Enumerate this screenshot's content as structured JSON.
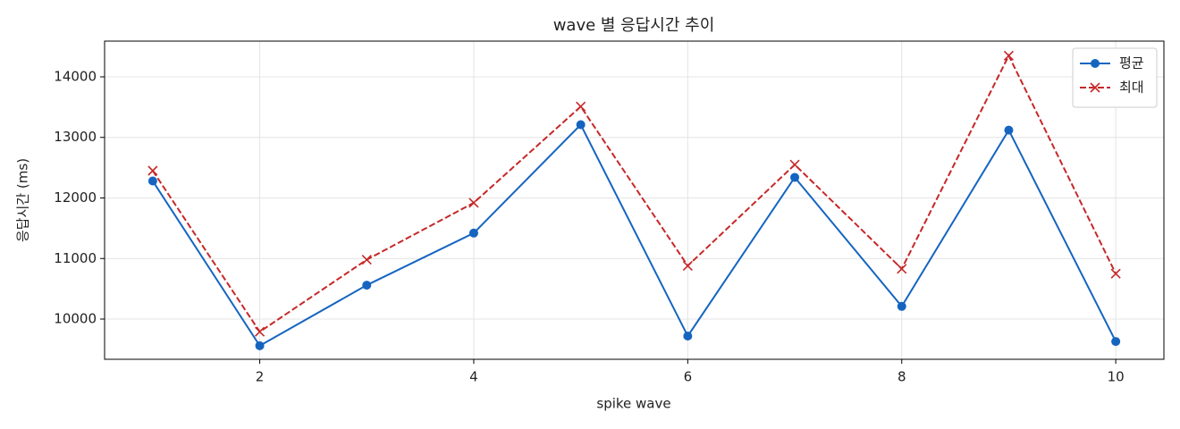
{
  "chart_data": {
    "type": "line",
    "title": "wave 별 응답시간 추이",
    "x_label": "spike wave",
    "y_label": "응답시간 (ms)",
    "x": [
      1,
      2,
      3,
      4,
      5,
      6,
      7,
      8,
      9,
      10
    ],
    "series": [
      {
        "name": "평균",
        "color": "#1565c0",
        "marker": "o",
        "linestyle": "solid",
        "values": [
          12280,
          9560,
          10560,
          11420,
          13210,
          9720,
          12340,
          10210,
          13120,
          9630
        ]
      },
      {
        "name": "최대",
        "color": "#c62828",
        "marker": "x",
        "linestyle": "dashed",
        "values": [
          12450,
          9790,
          10980,
          11920,
          13510,
          10880,
          12550,
          10830,
          14350,
          10750
        ]
      }
    ],
    "xlim": [
      0.55,
      10.45
    ],
    "xticks": [
      2,
      4,
      6,
      8,
      10
    ],
    "ylim": [
      9336,
      14590
    ],
    "yticks": [
      10000,
      11000,
      12000,
      13000,
      14000
    ],
    "grid": true,
    "legend": "upper right"
  }
}
